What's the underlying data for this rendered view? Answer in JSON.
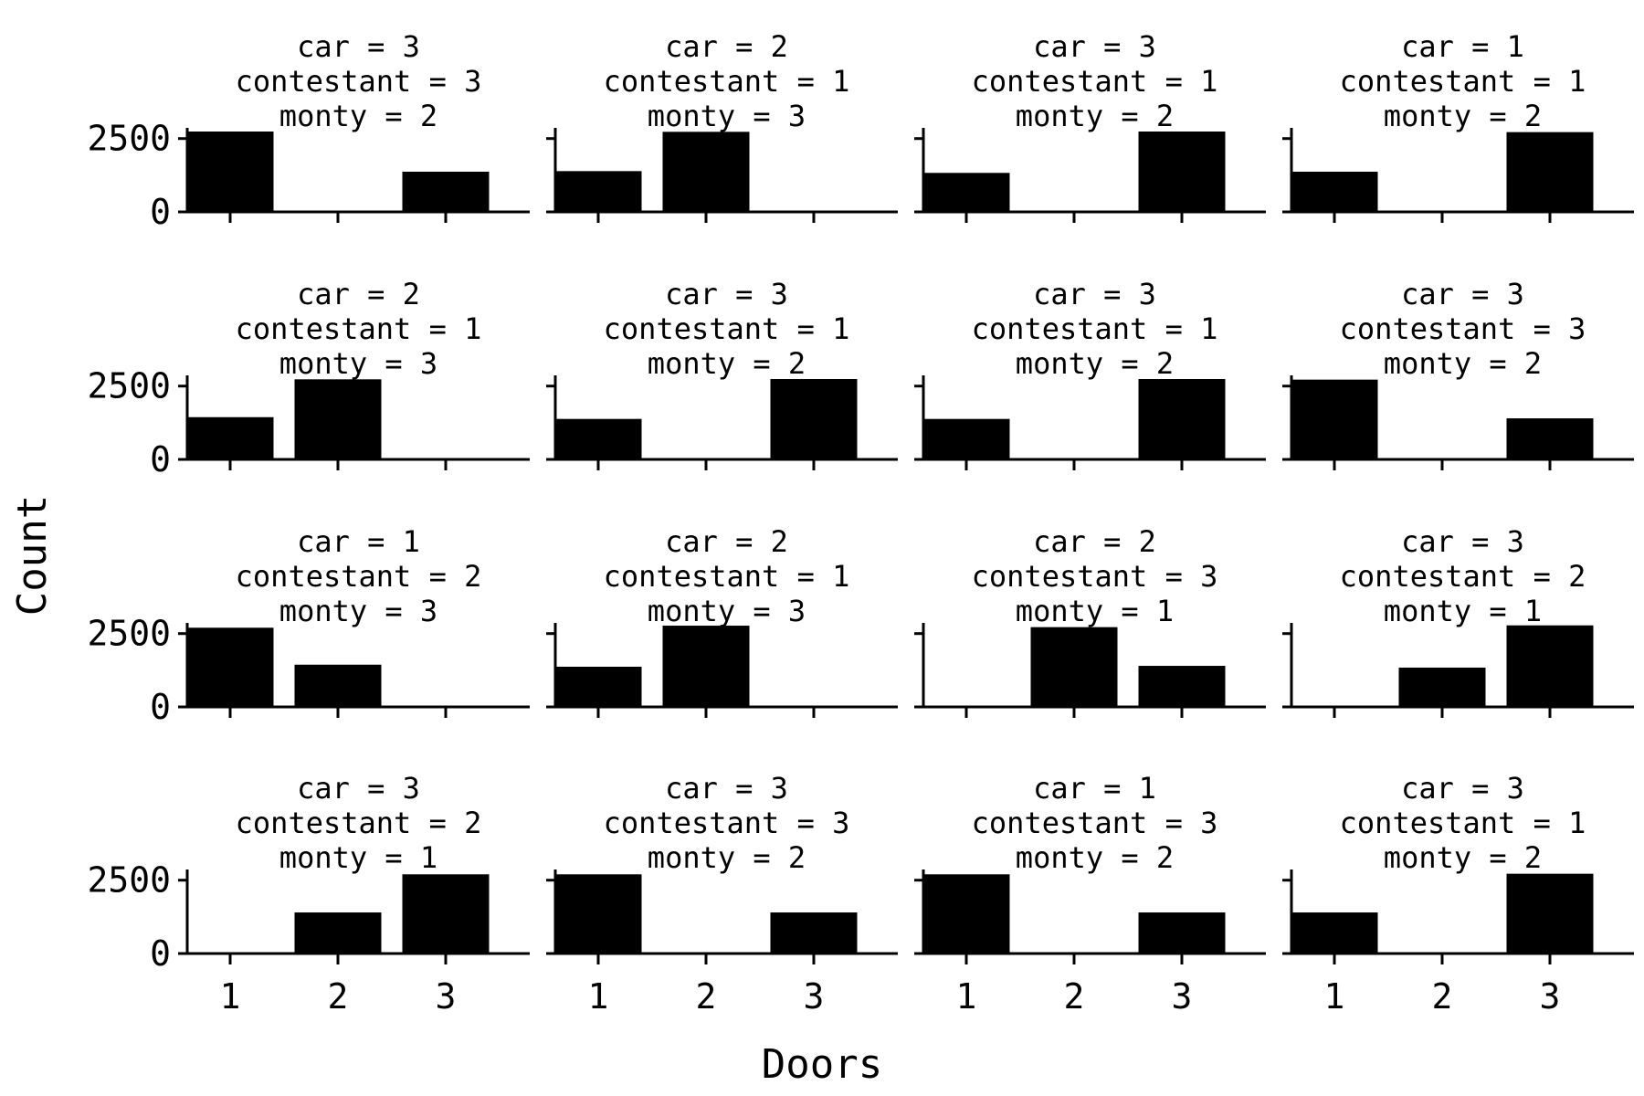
{
  "chart_data": {
    "type": "bar",
    "xlabel": "Doors",
    "ylabel": "Count",
    "categories": [
      "1",
      "2",
      "3"
    ],
    "ylim": [
      0,
      2700
    ],
    "yticks": [
      "0",
      "2500"
    ],
    "panels": [
      {
        "title": [
          "car = 3",
          "contestant = 3",
          "monty = 2"
        ],
        "values": [
          2740,
          0,
          1370
        ]
      },
      {
        "title": [
          "car = 2",
          "contestant = 1",
          "monty = 3"
        ],
        "values": [
          1390,
          2730,
          0
        ]
      },
      {
        "title": [
          "car = 3",
          "contestant = 1",
          "monty = 2"
        ],
        "values": [
          1330,
          0,
          2740
        ]
      },
      {
        "title": [
          "car = 1",
          "contestant = 1",
          "monty = 2"
        ],
        "values": [
          1370,
          0,
          2720
        ]
      },
      {
        "title": [
          "car = 2",
          "contestant = 1",
          "monty = 3"
        ],
        "values": [
          1440,
          2730,
          0
        ]
      },
      {
        "title": [
          "car = 3",
          "contestant = 1",
          "monty = 2"
        ],
        "values": [
          1380,
          0,
          2740
        ]
      },
      {
        "title": [
          "car = 3",
          "contestant = 1",
          "monty = 2"
        ],
        "values": [
          1380,
          0,
          2740
        ]
      },
      {
        "title": [
          "car = 3",
          "contestant = 3",
          "monty = 2"
        ],
        "values": [
          2720,
          0,
          1400
        ]
      },
      {
        "title": [
          "car = 1",
          "contestant = 2",
          "monty = 3"
        ],
        "values": [
          2700,
          1440,
          0
        ]
      },
      {
        "title": [
          "car = 2",
          "contestant = 1",
          "monty = 3"
        ],
        "values": [
          1370,
          2770,
          0
        ]
      },
      {
        "title": [
          "car = 2",
          "contestant = 3",
          "monty = 1"
        ],
        "values": [
          0,
          2720,
          1400
        ]
      },
      {
        "title": [
          "car = 3",
          "contestant = 2",
          "monty = 1"
        ],
        "values": [
          0,
          1340,
          2780
        ]
      },
      {
        "title": [
          "car = 3",
          "contestant = 2",
          "monty = 1"
        ],
        "values": [
          0,
          1400,
          2700
        ]
      },
      {
        "title": [
          "car = 3",
          "contestant = 3",
          "monty = 2"
        ],
        "values": [
          2700,
          0,
          1400
        ]
      },
      {
        "title": [
          "car = 1",
          "contestant = 3",
          "monty = 2"
        ],
        "values": [
          2700,
          0,
          1400
        ]
      },
      {
        "title": [
          "car = 3",
          "contestant = 1",
          "monty = 2"
        ],
        "values": [
          1400,
          0,
          2720
        ]
      }
    ]
  }
}
